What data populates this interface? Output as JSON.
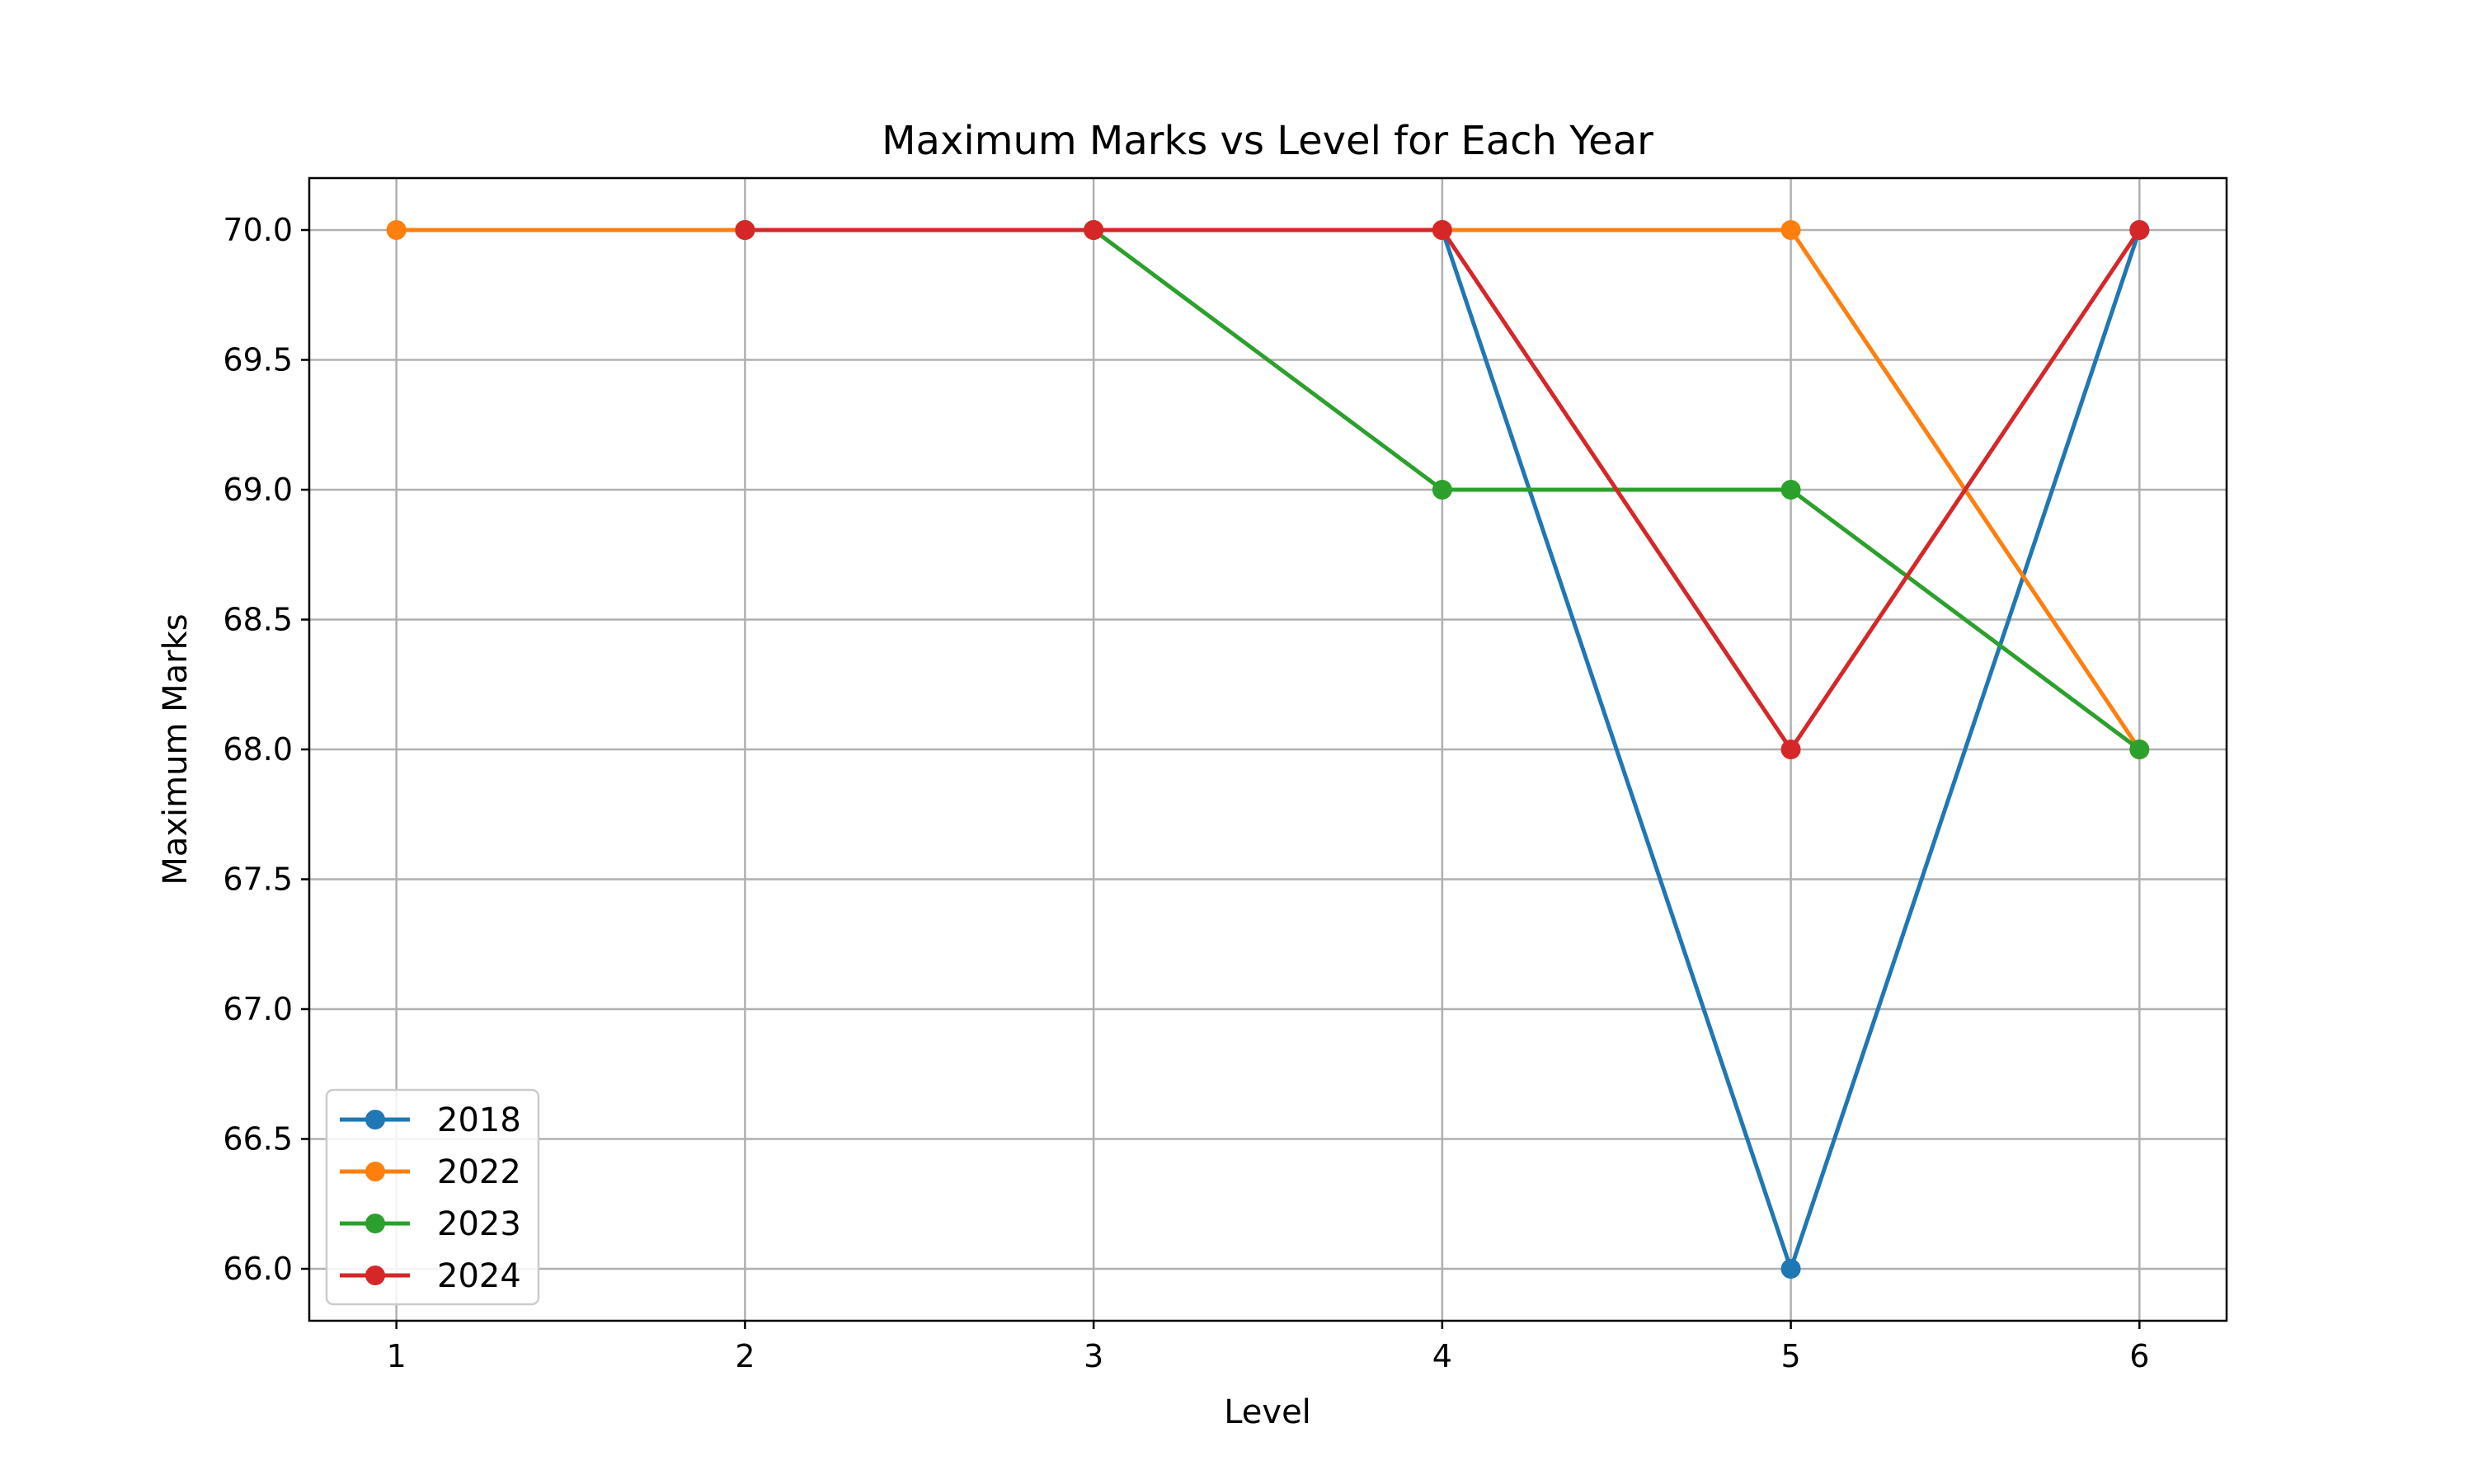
{
  "chart_data": {
    "type": "line",
    "title": "Maximum Marks vs Level for Each Year",
    "xlabel": "Level",
    "ylabel": "Maximum Marks",
    "x": [
      1,
      2,
      3,
      4,
      5,
      6
    ],
    "xlim": [
      0.75,
      6.25
    ],
    "ylim": [
      65.8,
      70.2
    ],
    "xticks": [
      "1",
      "2",
      "3",
      "4",
      "5",
      "6"
    ],
    "yticks": [
      "66.0",
      "66.5",
      "67.0",
      "67.5",
      "68.0",
      "68.5",
      "69.0",
      "69.5",
      "70.0"
    ],
    "grid": true,
    "legend_position": "lower-left",
    "series": [
      {
        "name": "2018",
        "color": "#1f77b4",
        "values": [
          null,
          70,
          70,
          70,
          66,
          70
        ]
      },
      {
        "name": "2022",
        "color": "#ff7f0e",
        "values": [
          70,
          70,
          70,
          70,
          70,
          68
        ]
      },
      {
        "name": "2023",
        "color": "#2ca02c",
        "values": [
          null,
          70,
          70,
          69,
          69,
          68
        ]
      },
      {
        "name": "2024",
        "color": "#d62728",
        "values": [
          null,
          70,
          70,
          70,
          68,
          70
        ]
      }
    ]
  }
}
